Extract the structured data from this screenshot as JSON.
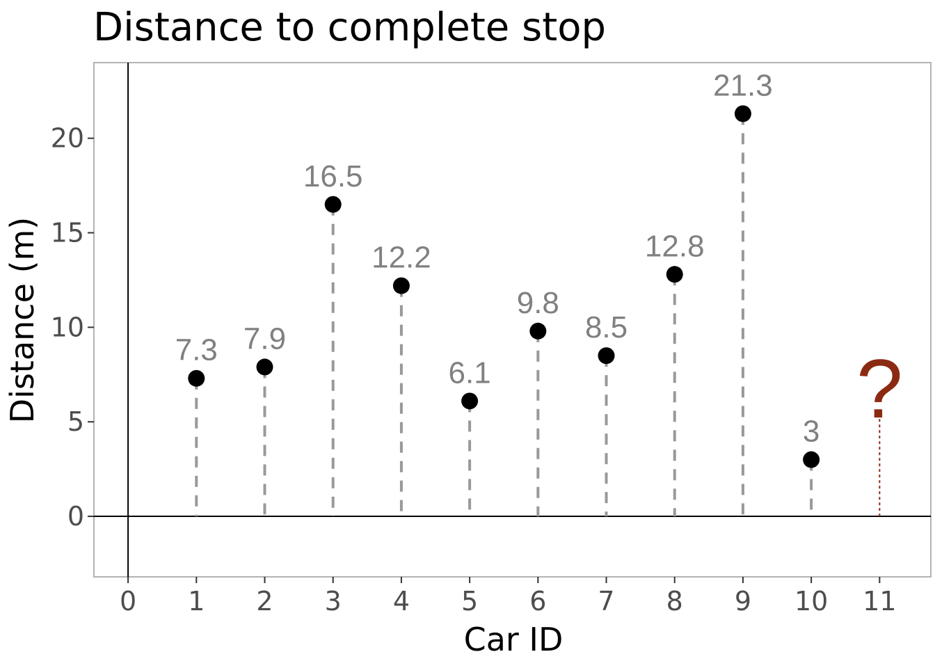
{
  "title": "Distance to complete stop",
  "colors": {
    "point": "#000000",
    "stem": "#999999",
    "label": "#808080",
    "unknown": "#8B2A12",
    "panel_border": "#b3b3b3"
  },
  "chart_data": {
    "type": "scatter",
    "title": "Distance to complete stop",
    "xlabel": "Car ID",
    "ylabel": "Distance (m)",
    "xlim": [
      -0.5,
      11.75
    ],
    "ylim": [
      -3.2,
      24.0
    ],
    "xticks": [
      0,
      1,
      2,
      3,
      4,
      5,
      6,
      7,
      8,
      9,
      10,
      11
    ],
    "yticks": [
      0,
      5,
      10,
      15,
      20
    ],
    "points": [
      {
        "x": 1,
        "y": 7.3,
        "label": "7.3"
      },
      {
        "x": 2,
        "y": 7.9,
        "label": "7.9"
      },
      {
        "x": 3,
        "y": 16.5,
        "label": "16.5"
      },
      {
        "x": 4,
        "y": 12.2,
        "label": "12.2"
      },
      {
        "x": 5,
        "y": 6.1,
        "label": "6.1"
      },
      {
        "x": 6,
        "y": 9.8,
        "label": "9.8"
      },
      {
        "x": 7,
        "y": 8.5,
        "label": "8.5"
      },
      {
        "x": 8,
        "y": 12.8,
        "label": "12.8"
      },
      {
        "x": 9,
        "y": 21.3,
        "label": "21.3"
      },
      {
        "x": 10,
        "y": 3,
        "label": "3"
      }
    ],
    "unknown": {
      "x": 11,
      "y": 5.3,
      "label": "?"
    },
    "reference_lines": {
      "x": 0,
      "y": 0
    },
    "grid": false,
    "legend": "none"
  }
}
